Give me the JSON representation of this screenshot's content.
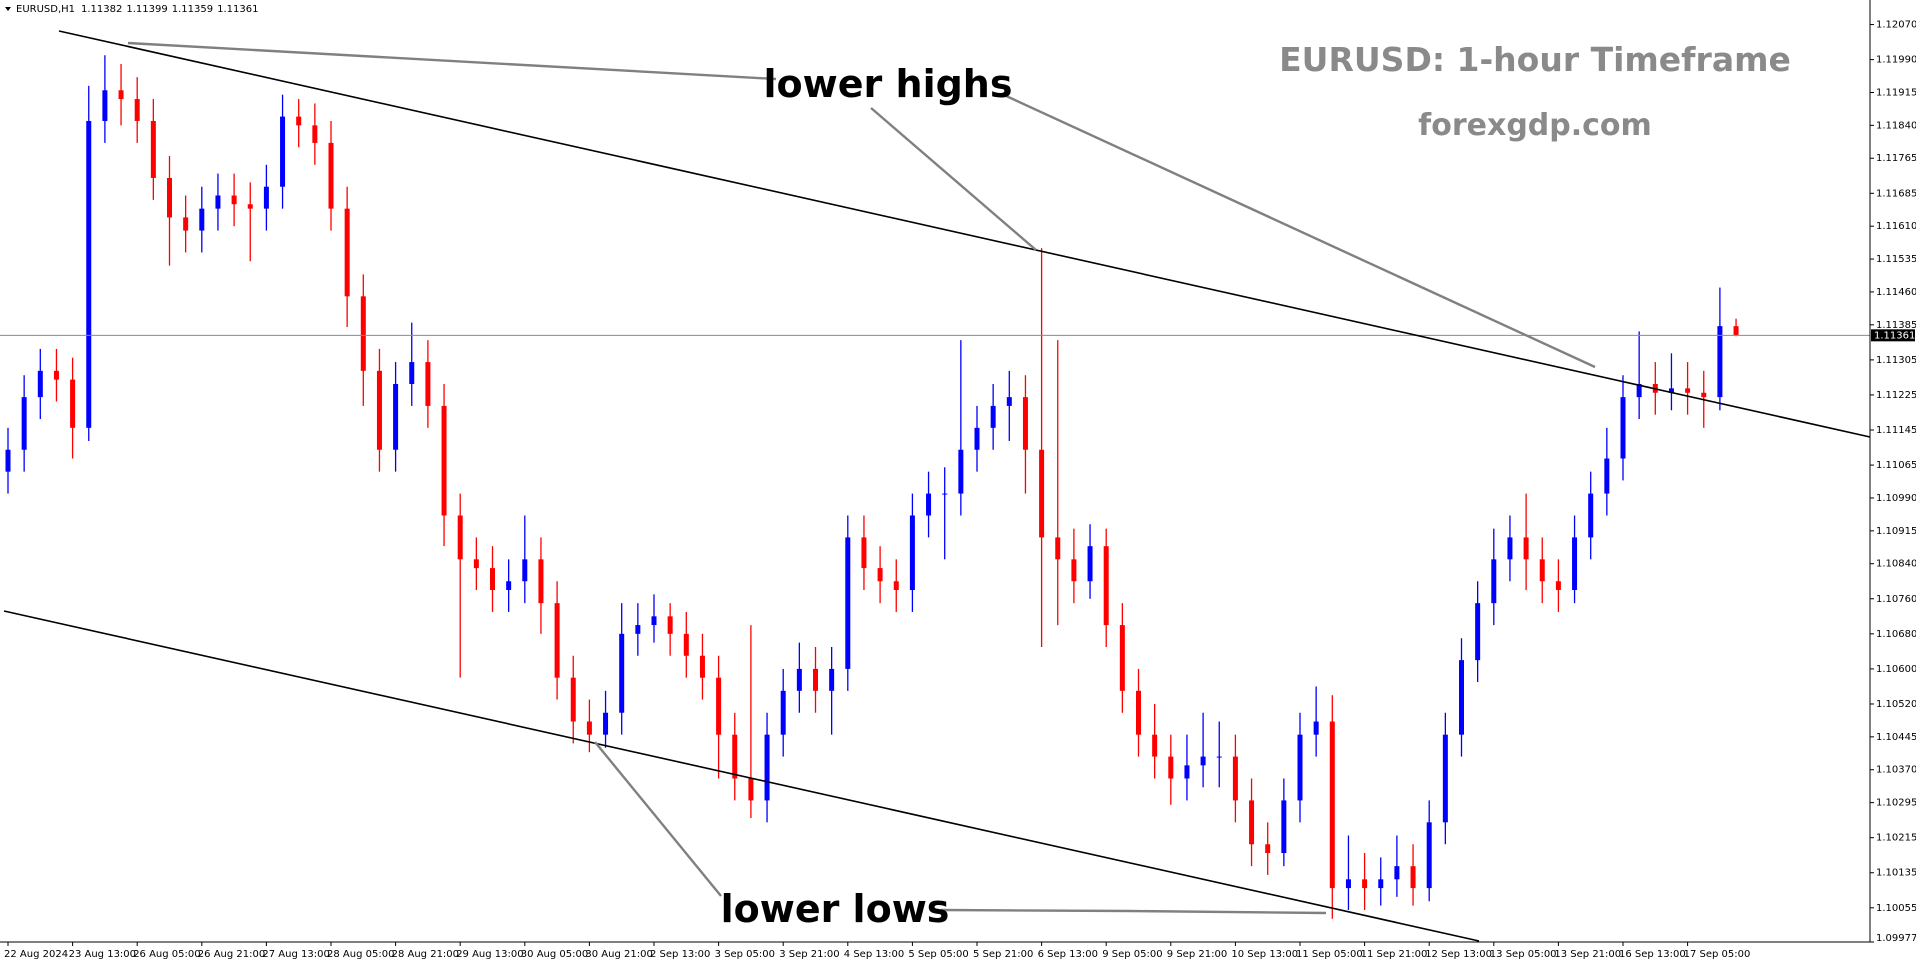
{
  "chart_data": {
    "type": "candlestick",
    "symbol": "EURUSD,H1",
    "title": "EURUSD: 1-hour Timeframe",
    "subtitle": "forexgdp.com",
    "annotations": [
      "lower highs",
      "lower lows"
    ],
    "categories": [
      "22 Aug 2024",
      null,
      null,
      null,
      "23 Aug 13:00",
      null,
      null,
      null,
      "26 Aug 05:00",
      null,
      null,
      null,
      "26 Aug 21:00",
      null,
      null,
      null,
      "27 Aug 13:00",
      null,
      null,
      null,
      "28 Aug 05:00",
      null,
      null,
      null,
      "28 Aug 21:00",
      null,
      null,
      null,
      "29 Aug 13:00",
      null,
      null,
      null,
      "30 Aug 05:00",
      null,
      null,
      null,
      "30 Aug 21:00",
      null,
      null,
      null,
      "2 Sep 13:00",
      null,
      null,
      null,
      "3 Sep 05:00",
      null,
      null,
      null,
      "3 Sep 21:00",
      null,
      null,
      null,
      "4 Sep 13:00",
      null,
      null,
      null,
      "5 Sep 05:00",
      null,
      null,
      null,
      "5 Sep 21:00",
      null,
      null,
      null,
      "6 Sep 13:00",
      null,
      null,
      null,
      "9 Sep 05:00",
      null,
      null,
      null,
      "9 Sep 21:00",
      null,
      null,
      null,
      "10 Sep 13:00",
      null,
      null,
      null,
      "11 Sep 05:00",
      null,
      null,
      null,
      "11 Sep 21:00",
      null,
      null,
      null,
      "12 Sep 13:00",
      null,
      null,
      null,
      "13 Sep 05:00",
      null,
      null,
      null,
      "13 Sep 21:00",
      null,
      null,
      null,
      "16 Sep 13:00",
      null,
      null,
      null,
      "17 Sep 05:00",
      null,
      null,
      null
    ],
    "open": [
      1.1105,
      1.111,
      1.1122,
      1.1128,
      1.1126,
      1.1115,
      1.1185,
      1.1192,
      1.119,
      1.1185,
      1.1172,
      1.1163,
      1.116,
      1.1165,
      1.1168,
      1.1166,
      1.1165,
      1.117,
      1.1186,
      1.1184,
      1.118,
      1.1165,
      1.1145,
      1.1128,
      1.111,
      1.1125,
      1.113,
      1.112,
      1.1095,
      1.1085,
      1.1083,
      1.1078,
      1.108,
      1.1085,
      1.1075,
      1.1058,
      1.1048,
      1.1045,
      1.105,
      1.1068,
      1.107,
      1.1072,
      1.1068,
      1.1063,
      1.1058,
      1.1045,
      1.1035,
      1.103,
      1.1045,
      1.1055,
      1.106,
      1.1055,
      1.106,
      1.109,
      1.1083,
      1.108,
      1.1078,
      1.1095,
      1.11,
      1.11,
      1.111,
      1.1115,
      1.112,
      1.1122,
      1.111,
      1.109,
      1.1085,
      1.108,
      1.1088,
      1.107,
      1.1055,
      1.1045,
      1.104,
      1.1035,
      1.1038,
      1.104,
      1.104,
      1.103,
      1.102,
      1.1018,
      1.103,
      1.1045,
      1.1048,
      1.101,
      1.1012,
      1.101,
      1.1012,
      1.1015,
      1.101,
      1.1025,
      1.1045,
      1.1062,
      1.1075,
      1.1085,
      1.109,
      1.1085,
      1.108,
      1.1078,
      1.109,
      1.11,
      1.1108,
      1.1122,
      1.1125,
      1.1123,
      1.1124,
      1.1123,
      1.1122,
      1.11382
    ],
    "high": [
      1.1115,
      1.1127,
      1.1133,
      1.1133,
      1.1131,
      1.1193,
      1.12,
      1.1198,
      1.1195,
      1.119,
      1.1177,
      1.1168,
      1.117,
      1.1173,
      1.1173,
      1.1171,
      1.1175,
      1.1191,
      1.119,
      1.1189,
      1.1185,
      1.117,
      1.115,
      1.1133,
      1.113,
      1.1139,
      1.1135,
      1.1125,
      1.11,
      1.109,
      1.1088,
      1.1085,
      1.1095,
      1.109,
      1.108,
      1.1063,
      1.1053,
      1.1055,
      1.1075,
      1.1075,
      1.1077,
      1.1075,
      1.1073,
      1.1068,
      1.1063,
      1.105,
      1.107,
      1.105,
      1.106,
      1.1066,
      1.1065,
      1.1065,
      1.1095,
      1.1095,
      1.1088,
      1.1085,
      1.11,
      1.1105,
      1.1106,
      1.1135,
      1.112,
      1.1125,
      1.1128,
      1.1127,
      1.1156,
      1.1135,
      1.1092,
      1.1093,
      1.1092,
      1.1075,
      1.106,
      1.1052,
      1.1045,
      1.1045,
      1.105,
      1.1048,
      1.1045,
      1.1035,
      1.1025,
      1.1035,
      1.105,
      1.1056,
      1.1054,
      1.1022,
      1.1018,
      1.1017,
      1.1022,
      1.102,
      1.103,
      1.105,
      1.1067,
      1.108,
      1.1092,
      1.1095,
      1.11,
      1.109,
      1.1085,
      1.1095,
      1.1105,
      1.1115,
      1.1127,
      1.1137,
      1.113,
      1.1132,
      1.113,
      1.1128,
      1.1147,
      1.11399
    ],
    "low": [
      1.11,
      1.1105,
      1.1117,
      1.1121,
      1.1108,
      1.1112,
      1.118,
      1.1184,
      1.118,
      1.1167,
      1.1152,
      1.1155,
      1.1155,
      1.116,
      1.1161,
      1.1153,
      1.116,
      1.1165,
      1.1179,
      1.1175,
      1.116,
      1.1138,
      1.112,
      1.1105,
      1.1105,
      1.112,
      1.1115,
      1.1088,
      1.1058,
      1.1078,
      1.1073,
      1.1073,
      1.1075,
      1.1068,
      1.1053,
      1.1043,
      1.1041,
      1.1042,
      1.1045,
      1.1063,
      1.1066,
      1.1063,
      1.1058,
      1.1053,
      1.1035,
      1.103,
      1.1026,
      1.1025,
      1.104,
      1.105,
      1.105,
      1.1045,
      1.1055,
      1.1078,
      1.1075,
      1.1073,
      1.1073,
      1.109,
      1.1085,
      1.1095,
      1.1105,
      1.111,
      1.1112,
      1.11,
      1.1065,
      1.107,
      1.1075,
      1.1076,
      1.1065,
      1.105,
      1.104,
      1.1035,
      1.1029,
      1.103,
      1.1033,
      1.1033,
      1.1025,
      1.1015,
      1.1013,
      1.1015,
      1.1025,
      1.104,
      1.1003,
      1.1005,
      1.1005,
      1.1006,
      1.1008,
      1.1006,
      1.1007,
      1.102,
      1.104,
      1.1057,
      1.107,
      1.108,
      1.1078,
      1.1075,
      1.1073,
      1.1075,
      1.1085,
      1.1095,
      1.1103,
      1.1117,
      1.1118,
      1.1119,
      1.1118,
      1.1115,
      1.1119,
      1.11359
    ],
    "close": [
      1.111,
      1.1122,
      1.1128,
      1.1126,
      1.1115,
      1.1185,
      1.1192,
      1.119,
      1.1185,
      1.1172,
      1.1163,
      1.116,
      1.1165,
      1.1168,
      1.1166,
      1.1165,
      1.117,
      1.1186,
      1.1184,
      1.118,
      1.1165,
      1.1145,
      1.1128,
      1.111,
      1.1125,
      1.113,
      1.112,
      1.1095,
      1.1085,
      1.1083,
      1.1078,
      1.108,
      1.1085,
      1.1075,
      1.1058,
      1.1048,
      1.1045,
      1.105,
      1.1068,
      1.107,
      1.1072,
      1.1068,
      1.1063,
      1.1058,
      1.1045,
      1.1035,
      1.103,
      1.1045,
      1.1055,
      1.106,
      1.1055,
      1.106,
      1.109,
      1.1083,
      1.108,
      1.1078,
      1.1095,
      1.11,
      1.11,
      1.111,
      1.1115,
      1.112,
      1.1122,
      1.111,
      1.109,
      1.1085,
      1.108,
      1.1088,
      1.107,
      1.1055,
      1.1045,
      1.104,
      1.1035,
      1.1038,
      1.104,
      1.104,
      1.103,
      1.102,
      1.1018,
      1.103,
      1.1045,
      1.1048,
      1.101,
      1.1012,
      1.101,
      1.1012,
      1.1015,
      1.101,
      1.1025,
      1.1045,
      1.1062,
      1.1075,
      1.1085,
      1.109,
      1.1085,
      1.108,
      1.1078,
      1.109,
      1.11,
      1.1108,
      1.1122,
      1.1125,
      1.1123,
      1.1124,
      1.1123,
      1.1122,
      1.11382,
      1.11361
    ],
    "up_color": "#0000ff",
    "down_color": "#ff0000",
    "ylim": [
      1.09977,
      1.12126
    ],
    "yticks": [
      {
        "value": 1.1207,
        "label": "1.12070"
      },
      {
        "value": 1.1199,
        "label": "1.11990"
      },
      1.11915,
      {
        "value": 1.1184,
        "label": "1.11840"
      },
      1.11765,
      1.11685,
      {
        "value": 1.1161,
        "label": "1.11610"
      },
      1.11535,
      {
        "value": 1.1146,
        "label": "1.11460"
      },
      1.11385,
      1.11305,
      1.11225,
      1.11145,
      1.11065,
      {
        "value": 1.1099,
        "label": "1.10990"
      },
      1.10915,
      {
        "value": 1.1084,
        "label": "1.10840"
      },
      {
        "value": 1.1076,
        "label": "1.10760"
      },
      {
        "value": 1.1068,
        "label": "1.10680"
      },
      {
        "value": 1.106,
        "label": "1.10600"
      },
      {
        "value": 1.1052,
        "label": "1.10520"
      },
      1.10445,
      {
        "value": 1.1037,
        "label": "1.10370"
      },
      1.10295,
      1.10215,
      1.10135,
      1.10055,
      1.09977
    ],
    "grid": false
  }
}
